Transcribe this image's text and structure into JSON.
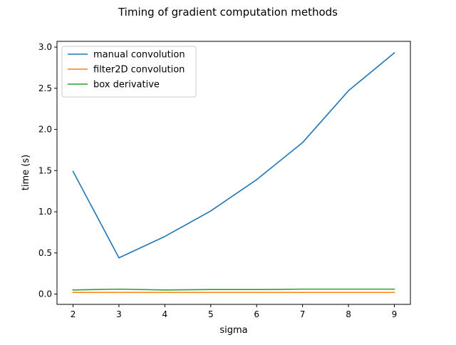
{
  "chart_data": {
    "type": "line",
    "title": "Timing of gradient computation methods",
    "xlabel": "sigma",
    "ylabel": "time (s)",
    "x": [
      2,
      3,
      4,
      5,
      6,
      7,
      8,
      9
    ],
    "xlim": [
      1.65,
      9.35
    ],
    "ylim": [
      -0.125,
      3.07
    ],
    "xticks": [
      2,
      3,
      4,
      5,
      6,
      7,
      8,
      9
    ],
    "yticks": [
      0.0,
      0.5,
      1.0,
      1.5,
      2.0,
      2.5,
      3.0
    ],
    "ytick_labels": [
      "0.0",
      "0.5",
      "1.0",
      "1.5",
      "2.0",
      "2.5",
      "3.0"
    ],
    "grid": false,
    "legend_position": "upper-left",
    "series": [
      {
        "name": "manual convolution",
        "color": "#1f77b4",
        "values": [
          1.49,
          0.44,
          0.7,
          1.01,
          1.39,
          1.84,
          2.47,
          2.93
        ]
      },
      {
        "name": "filter2D convolution",
        "color": "#ff7f0e",
        "values": [
          0.02,
          0.02,
          0.02,
          0.02,
          0.02,
          0.02,
          0.02,
          0.02
        ]
      },
      {
        "name": "box derivative",
        "color": "#2ca02c",
        "values": [
          0.05,
          0.06,
          0.05,
          0.055,
          0.055,
          0.06,
          0.06,
          0.06
        ]
      }
    ]
  }
}
